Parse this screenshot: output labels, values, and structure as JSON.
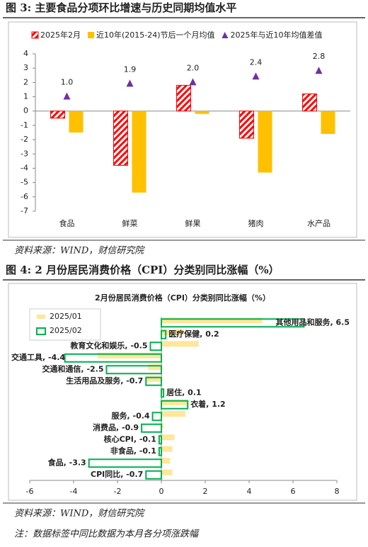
{
  "figure3_caption": "图 3: 主要食品分项环比增速与历史同期均值水平",
  "source1": "资料来源：WIND，财信研究院",
  "figure4_caption": "图 4: 2 月份居民消费价格（CPI）分类别同比涨幅（%）",
  "source2": "资料来源：WIND，财信研究院",
  "note": "注：数据标签中同比数据为本月各分项涨跌幅",
  "chart_data": [
    {
      "type": "bar",
      "categories": [
        "食品",
        "鲜菜",
        "鲜果",
        "猪肉",
        "水产品"
      ],
      "series": [
        {
          "name": "2025年2月",
          "type": "bar",
          "color": "#FF0000",
          "hatch": true,
          "values": [
            -0.5,
            -3.8,
            1.8,
            -1.9,
            1.2
          ]
        },
        {
          "name": "近10年(2015-24)节后一个月均值",
          "type": "bar",
          "color": "#FFC000",
          "values": [
            -1.5,
            -5.7,
            -0.2,
            -4.3,
            -1.6
          ]
        },
        {
          "name": "2025年与近10年均值差值",
          "type": "scatter",
          "marker": "triangle",
          "color": "#7030A0",
          "values": [
            1.0,
            1.9,
            2.0,
            2.4,
            2.8
          ],
          "value_labels": [
            "1.0",
            "1.9",
            "2.0",
            "2.4",
            "2.8"
          ]
        }
      ],
      "ylim": [
        -7,
        4
      ],
      "yticks": [
        -7,
        -6,
        -5,
        -4,
        -3,
        -2,
        -1,
        0,
        1,
        2,
        3,
        4
      ],
      "grid": false,
      "legend": "top"
    },
    {
      "type": "bar",
      "orientation": "horizontal",
      "title": "2月份居民消费价格（CPI）分类别同比涨幅（%）",
      "categories": [
        "其他用品和服务",
        "医疗保健",
        "教育文化和娱乐",
        "交通工具",
        "交通和通信",
        "生活用品及服务",
        "居住",
        "衣着",
        "服务",
        "消费品",
        "核心CPI",
        "非食品",
        "食品",
        "CPI同比"
      ],
      "series": [
        {
          "name": "2025/01",
          "color": "#FFE699",
          "outline": false,
          "values": [
            4.6,
            1.0,
            1.7,
            -2.9,
            -0.6,
            -0.7,
            0.1,
            1.2,
            1.1,
            0.1,
            0.6,
            0.5,
            0.4,
            0.5
          ]
        },
        {
          "name": "2025/02",
          "color": "#00B050",
          "outline": true,
          "values": [
            6.5,
            0.2,
            -0.5,
            -4.4,
            -2.5,
            -0.7,
            0.1,
            1.2,
            -0.4,
            -0.9,
            -0.1,
            -0.1,
            -3.3,
            -0.7
          ],
          "value_labels": [
            "其他用品和服务, 6.5",
            "医疗保健, 0.2",
            "教育文化和娱乐, -0.5",
            "交通工具, -4.4",
            "交通和通信, -2.5",
            "生活用品及服务, -0.7",
            "居住, 0.1",
            "衣着, 1.2",
            "服务, -0.4",
            "消费品, -0.9",
            "核心CPI, -0.1",
            "非食品, -0.1",
            "食品, -3.3",
            "CPI同比, -0.7"
          ]
        }
      ],
      "xlim": [
        -6,
        8
      ],
      "xticks": [
        -6,
        -4,
        -2,
        0,
        2,
        4,
        6,
        8
      ],
      "grid": false,
      "legend": "top-left"
    }
  ]
}
